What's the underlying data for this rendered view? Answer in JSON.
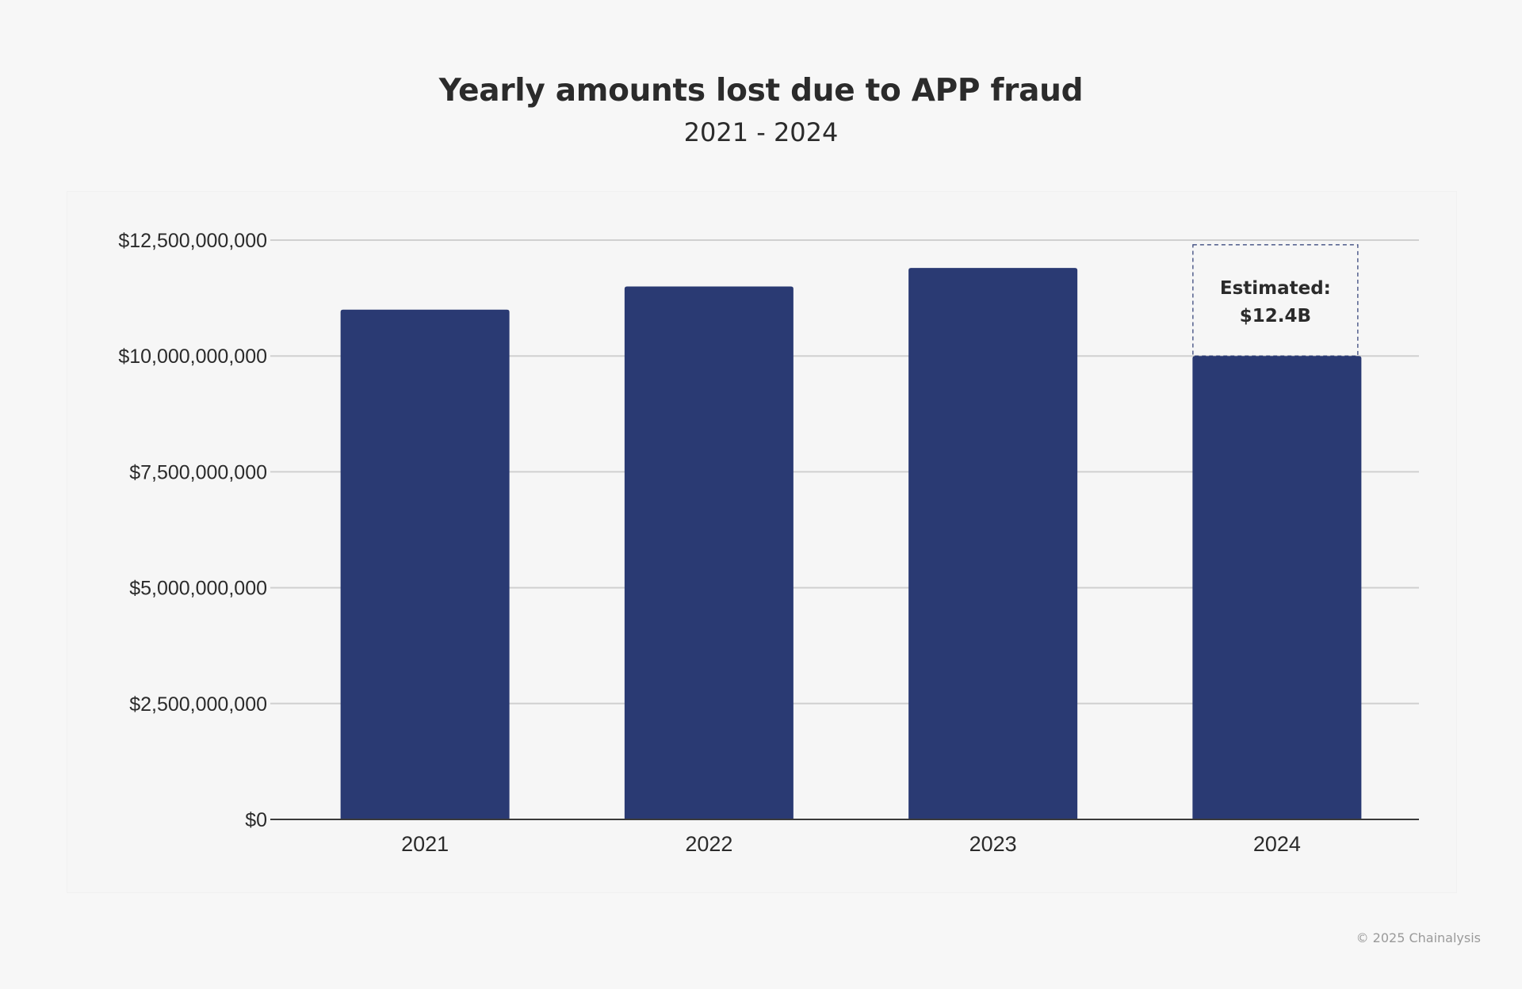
{
  "colors": {
    "bar": "#2a3a73",
    "grid": "#d0d0d0",
    "axis": "#3a3a3a",
    "text": "#2b2b2b",
    "annotation_border": "#2a3a73"
  },
  "chart_data": {
    "type": "bar",
    "title": "Yearly amounts lost due to APP fraud",
    "subtitle": "2021 - 2024",
    "xlabel": "",
    "ylabel": "",
    "categories": [
      "2021",
      "2022",
      "2023",
      "2024"
    ],
    "values": [
      11000000000,
      11500000000,
      11900000000,
      10000000000
    ],
    "ylim": [
      0,
      12500000000
    ],
    "yticks": [
      0,
      2500000000,
      5000000000,
      7500000000,
      10000000000,
      12500000000
    ],
    "ytick_labels": [
      "$0",
      "$2,500,000,000",
      "$5,000,000,000",
      "$7,500,000,000",
      "$10,000,000,000",
      "$12,500,000,000"
    ],
    "grid": true,
    "legend": "none",
    "annotations": [
      {
        "category": "2024",
        "value": 12400000000,
        "style": "dashed-box",
        "lines": [
          "Estimated:",
          "$12.4B"
        ]
      }
    ]
  },
  "footer": {
    "credit": "© 2025 Chainalysis"
  }
}
